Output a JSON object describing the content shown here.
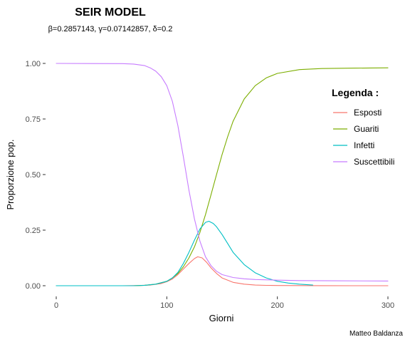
{
  "chart_data": {
    "type": "line",
    "title": "SEIR MODEL",
    "subtitle": "β=0.2857143,  γ=0.07142857,  δ=0.2",
    "xlabel": "Giorni",
    "ylabel": "Proporzione pop.",
    "xlim": [
      0,
      300
    ],
    "ylim": [
      0,
      1
    ],
    "xticks": [
      0,
      100,
      200,
      300
    ],
    "yticks": [
      "0.00",
      "0.25",
      "0.50",
      "0.75",
      "1.00"
    ],
    "legend": {
      "title": "Legenda :",
      "position": "right"
    },
    "caption": "Matteo Baldanza",
    "series": [
      {
        "name": "Esposti",
        "color": "#F8766D",
        "x": [
          0,
          60,
          75,
          85,
          95,
          100,
          105,
          110,
          115,
          120,
          125,
          128,
          132,
          136,
          140,
          145,
          150,
          160,
          170,
          180,
          190,
          200,
          220,
          240,
          270,
          300
        ],
        "y": [
          0,
          0,
          0.001,
          0.003,
          0.01,
          0.018,
          0.03,
          0.05,
          0.075,
          0.1,
          0.122,
          0.13,
          0.125,
          0.105,
          0.08,
          0.055,
          0.035,
          0.015,
          0.007,
          0.003,
          0.0015,
          0.001,
          0.0005,
          0.0002,
          0.0001,
          0
        ]
      },
      {
        "name": "Guariti",
        "color": "#7CAE00",
        "x": [
          0,
          70,
          80,
          90,
          100,
          105,
          110,
          115,
          120,
          125,
          130,
          135,
          140,
          145,
          150,
          155,
          160,
          170,
          180,
          190,
          200,
          220,
          240,
          270,
          300
        ],
        "y": [
          0,
          0,
          0.002,
          0.007,
          0.02,
          0.035,
          0.055,
          0.085,
          0.125,
          0.175,
          0.24,
          0.32,
          0.41,
          0.5,
          0.59,
          0.67,
          0.74,
          0.84,
          0.9,
          0.935,
          0.955,
          0.972,
          0.977,
          0.979,
          0.98
        ]
      },
      {
        "name": "Infetti",
        "color": "#00BFC4",
        "x": [
          0,
          70,
          80,
          90,
          100,
          105,
          110,
          115,
          120,
          125,
          130,
          135,
          138,
          142,
          145,
          150,
          155,
          160,
          170,
          180,
          190,
          200,
          210,
          220,
          232
        ],
        "y": [
          0,
          0,
          0.002,
          0.007,
          0.02,
          0.035,
          0.06,
          0.1,
          0.15,
          0.205,
          0.255,
          0.285,
          0.29,
          0.28,
          0.265,
          0.23,
          0.19,
          0.15,
          0.095,
          0.058,
          0.035,
          0.02,
          0.012,
          0.007,
          0.003
        ]
      },
      {
        "name": "Suscettibili",
        "color": "#C77CFF",
        "x": [
          0,
          60,
          70,
          80,
          85,
          90,
          95,
          100,
          105,
          110,
          115,
          120,
          125,
          130,
          135,
          140,
          145,
          150,
          160,
          170,
          180,
          200,
          220,
          250,
          300
        ],
        "y": [
          1.0,
          0.999,
          0.997,
          0.99,
          0.98,
          0.965,
          0.94,
          0.9,
          0.83,
          0.72,
          0.58,
          0.43,
          0.3,
          0.2,
          0.13,
          0.09,
          0.065,
          0.05,
          0.037,
          0.031,
          0.028,
          0.025,
          0.023,
          0.022,
          0.021
        ]
      }
    ]
  }
}
